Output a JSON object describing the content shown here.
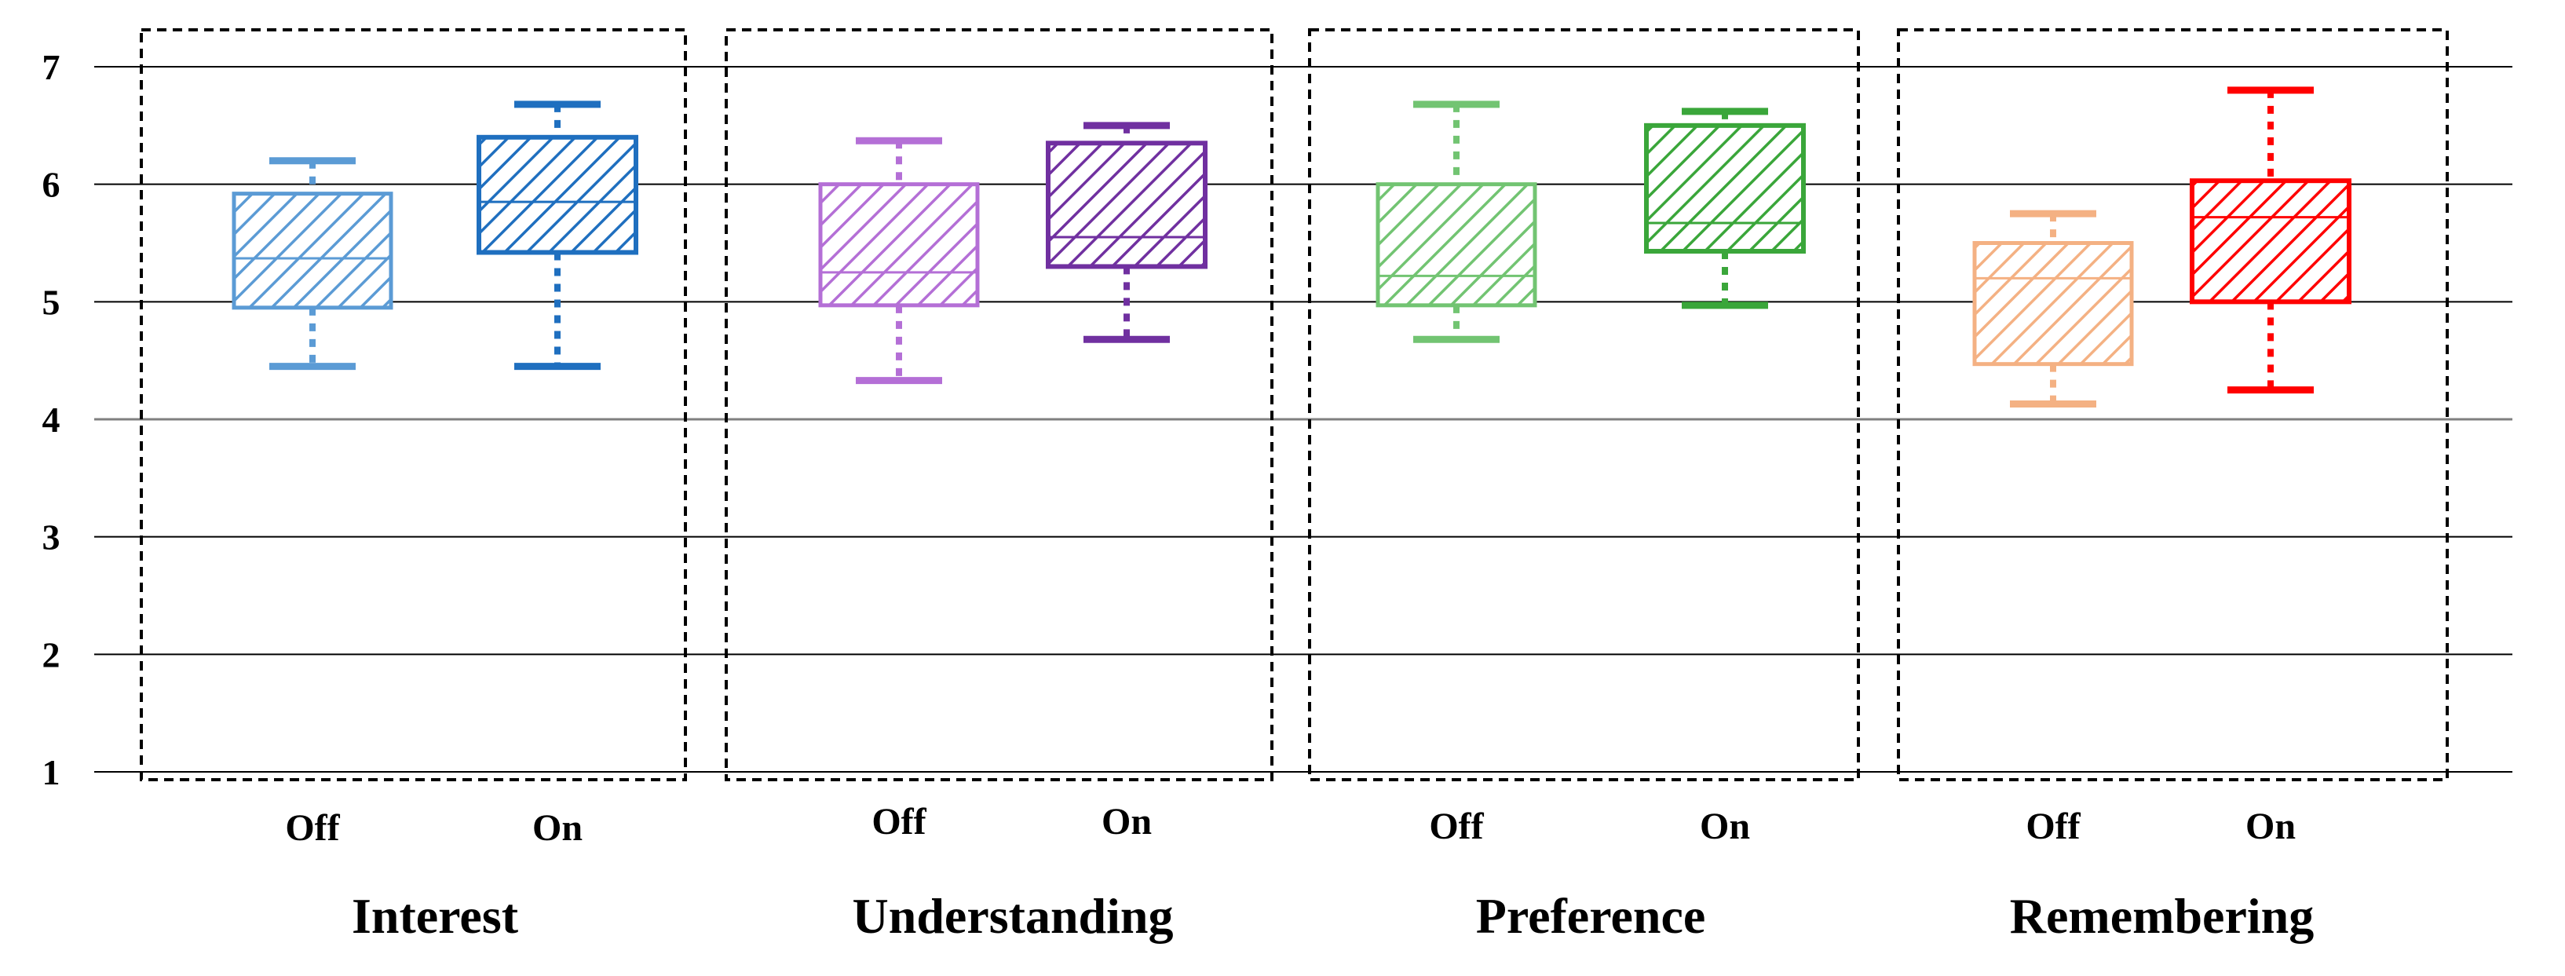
{
  "chart_data": {
    "type": "boxplot",
    "title": "",
    "xlabel": "",
    "ylabel": "",
    "ylim": [
      1,
      7
    ],
    "yticks": [
      1,
      2,
      3,
      4,
      5,
      6,
      7
    ],
    "grid": true,
    "groups": [
      {
        "name": "Interest",
        "boxes": [
          {
            "label": "Off",
            "min": 4.45,
            "q1": 4.95,
            "median": 5.37,
            "q3": 5.92,
            "max": 6.2,
            "color": "#5b9bd5",
            "light": true
          },
          {
            "label": "On",
            "min": 4.45,
            "q1": 5.42,
            "median": 5.85,
            "q3": 6.4,
            "max": 6.68,
            "color": "#1f6fbf",
            "light": false
          }
        ]
      },
      {
        "name": "Understanding",
        "boxes": [
          {
            "label": "Off",
            "min": 4.33,
            "q1": 4.97,
            "median": 5.25,
            "q3": 6.0,
            "max": 6.37,
            "color": "#b46fd6",
            "light": true
          },
          {
            "label": "On",
            "min": 4.68,
            "q1": 5.3,
            "median": 5.55,
            "q3": 6.35,
            "max": 6.5,
            "color": "#7030a0",
            "light": false
          }
        ]
      },
      {
        "name": "Preference",
        "boxes": [
          {
            "label": "Off",
            "min": 4.68,
            "q1": 4.97,
            "median": 5.22,
            "q3": 6.0,
            "max": 6.68,
            "color": "#72c472",
            "light": true
          },
          {
            "label": "On",
            "min": 4.97,
            "q1": 5.43,
            "median": 5.67,
            "q3": 6.5,
            "max": 6.62,
            "color": "#3aa63a",
            "light": false
          }
        ]
      },
      {
        "name": "Remembering",
        "boxes": [
          {
            "label": "Off",
            "min": 4.13,
            "q1": 4.47,
            "median": 5.2,
            "q3": 5.5,
            "max": 5.75,
            "color": "#f4b183",
            "light": true
          },
          {
            "label": "On",
            "min": 4.25,
            "q1": 5.0,
            "median": 5.72,
            "q3": 6.03,
            "max": 6.8,
            "color": "#ff0000",
            "light": false
          }
        ]
      }
    ]
  }
}
